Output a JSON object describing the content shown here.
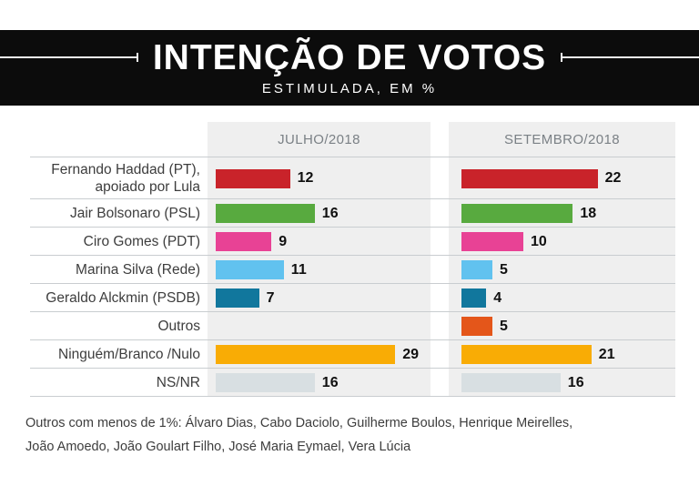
{
  "header": {
    "title": "INTENÇÃO DE VOTOS",
    "subtitle": "ESTIMULADA, EM %"
  },
  "chart_data": {
    "type": "bar",
    "orientation": "horizontal",
    "value_unit": "%",
    "title": "INTENÇÃO DE VOTOS",
    "subtitle": "ESTIMULADA, EM %",
    "data_labels": true,
    "xlim": [
      0,
      32
    ],
    "categories": [
      "Fernando Haddad (PT), apoiado por Lula",
      "Jair Bolsonaro (PSL)",
      "Ciro Gomes (PDT)",
      "Marina Silva (Rede)",
      "Geraldo Alckmin (PSDB)",
      "Outros",
      "Ninguém/Branco /Nulo",
      "NS/NR"
    ],
    "category_lines": [
      [
        "Fernando Haddad (PT),",
        "apoiado por Lula"
      ],
      [
        "Jair Bolsonaro (PSL)"
      ],
      [
        "Ciro Gomes (PDT)"
      ],
      [
        "Marina Silva (Rede)"
      ],
      [
        "Geraldo Alckmin (PSDB)"
      ],
      [
        "Outros"
      ],
      [
        "Ninguém/Branco /Nulo"
      ],
      [
        "NS/NR"
      ]
    ],
    "series": [
      {
        "name": "JULHO/2018",
        "values": [
          12,
          16,
          9,
          11,
          7,
          null,
          29,
          16
        ]
      },
      {
        "name": "SETEMBRO/2018",
        "values": [
          22,
          18,
          10,
          5,
          4,
          5,
          21,
          16
        ]
      }
    ],
    "bar_colors": [
      "#c9232a",
      "#58aa3f",
      "#e84295",
      "#61c2ef",
      "#11779d",
      "#e4561a",
      "#f9ac05",
      "#d8dfe2"
    ],
    "footnote": "Outros com menos de 1%: Álvaro Dias, Cabo Daciolo, Guilherme Boulos, Henrique Meirelles, João Amoedo, João Goulart Filho, José Maria Eymael, Vera Lúcia"
  },
  "footer": {
    "line1": "Outros com menos de 1%: Álvaro Dias, Cabo Daciolo, Guilherme Boulos, Henrique Meirelles,",
    "line2": "João Amoedo, João Goulart Filho, José Maria Eymael, Vera Lúcia"
  }
}
